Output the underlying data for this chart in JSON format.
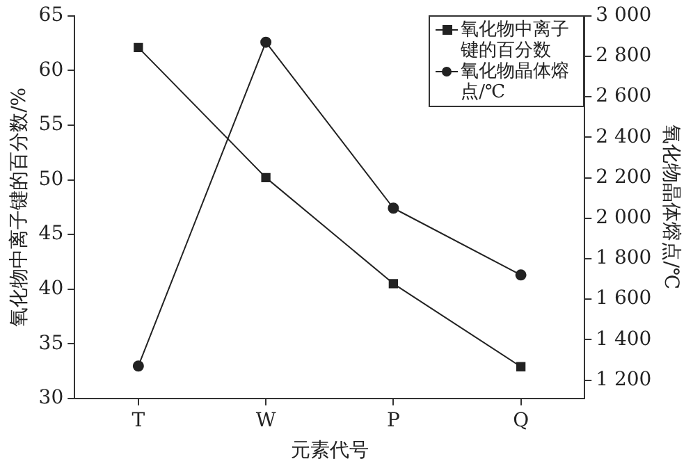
{
  "chart_data": {
    "type": "line",
    "xlabel": "元素代号",
    "ylabel": "氧化物中离子键的百分数/%",
    "y2label": "氧化物晶体熔点/℃",
    "categories": [
      "T",
      "W",
      "P",
      "Q"
    ],
    "series": [
      {
        "name": "氧化物中离子键的百分数",
        "color": "#222222",
        "marker": "square",
        "values": [
          62.1,
          50.2,
          40.5,
          32.9
        ]
      },
      {
        "name": "氧化物晶体熔点/℃",
        "color": "#222222",
        "marker": "circle",
        "axis": "y2",
        "values": [
          1270,
          2870,
          2050,
          1720
        ]
      }
    ],
    "ylim": [
      30,
      65
    ],
    "yticks": [
      30,
      35,
      40,
      45,
      50,
      55,
      60,
      65
    ],
    "y2lim": [
      1110,
      3000
    ],
    "y2ticks": [
      {
        "value": 1200,
        "label": "1 200"
      },
      {
        "value": 1400,
        "label": "1 400"
      },
      {
        "value": 1600,
        "label": "1 600"
      },
      {
        "value": 1800,
        "label": "1 800"
      },
      {
        "value": 2000,
        "label": "2 000"
      },
      {
        "value": 2200,
        "label": "2 200"
      },
      {
        "value": 2400,
        "label": "2 400"
      },
      {
        "value": 2600,
        "label": "2 600"
      },
      {
        "value": 2800,
        "label": "2 800"
      },
      {
        "value": 3000,
        "label": "3 000"
      }
    ],
    "grid": false,
    "legend": "top right",
    "line_style": "solid"
  }
}
